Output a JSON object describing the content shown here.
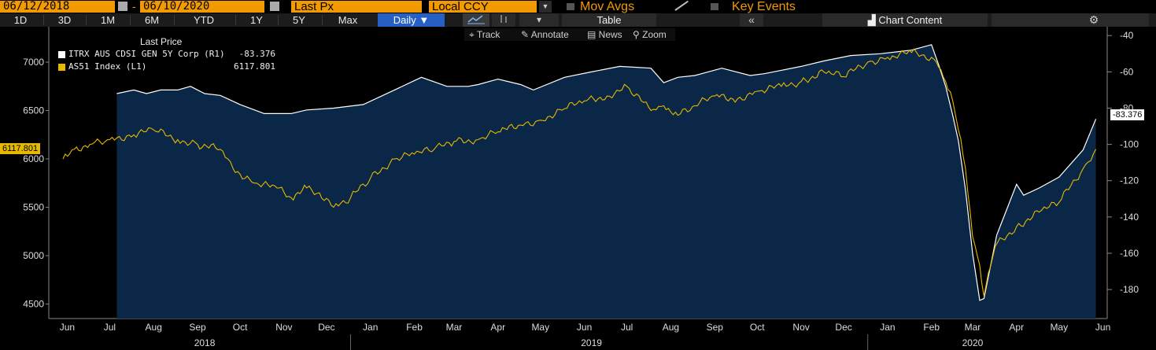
{
  "toolbar": {
    "start_date": "06/12/2018",
    "date_sep": "-",
    "end_date": "06/10/2020",
    "price_field": "Last Px",
    "currency": "Local CCY",
    "mov_avgs": "Mov Avgs",
    "key_events": "Key Events"
  },
  "periods": [
    "1D",
    "3D",
    "1M",
    "6M",
    "YTD",
    "1Y",
    "5Y",
    "Max"
  ],
  "frequency": "Daily",
  "table_label": "Table",
  "chart_content_label": "Chart Content",
  "collapse_label": "«",
  "tools": {
    "track": "Track",
    "annotate": "Annotate",
    "news": "News",
    "zoom": "Zoom"
  },
  "colors": {
    "orange": "#f29a00",
    "active_blue": "#2660c4",
    "plot_fill": "#0b2747",
    "yellow": "#e6b800",
    "white": "#ffffff"
  },
  "chart_data": {
    "type": "line",
    "legend": {
      "title": "Last Price",
      "entries": [
        {
          "name": "ITRX AUS CDSI GEN 5Y Corp  (R1)",
          "value": "-83.376",
          "color": "#ffffff"
        },
        {
          "name": "AS51 Index  (L1)",
          "value": "6117.801",
          "color": "#e6b800"
        }
      ]
    },
    "left_axis": {
      "ticks": [
        "7000",
        "6500",
        "6000",
        "5500",
        "5000",
        "4500"
      ],
      "ylim": [
        4350,
        7350
      ],
      "current_label": "6117.801"
    },
    "right_axis": {
      "ticks": [
        "-40",
        "-60",
        "-80",
        "-100",
        "-120",
        "-140",
        "-160",
        "-180"
      ],
      "ylim": [
        -196,
        -36
      ],
      "current_label": "-83.376"
    },
    "x_months": [
      "Jun",
      "Jul",
      "Aug",
      "Sep",
      "Oct",
      "Nov",
      "Dec",
      "Jan",
      "Feb",
      "Mar",
      "Apr",
      "May",
      "Jun",
      "Jul",
      "Aug",
      "Sep",
      "Oct",
      "Nov",
      "Dec",
      "Jan",
      "Feb",
      "Mar",
      "Apr",
      "May",
      "Jun"
    ],
    "x_years": [
      "2018",
      "2019",
      "2020"
    ],
    "series": [
      {
        "name": "ITRX AUS CDSI GEN 5Y Corp",
        "axis": "right",
        "x": [
          "2018-07-20",
          "2018-08-01",
          "2018-08-10",
          "2018-08-20",
          "2018-09-01",
          "2018-09-10",
          "2018-09-20",
          "2018-10-01",
          "2018-10-15",
          "2018-11-01",
          "2018-11-20",
          "2018-12-01",
          "2018-12-20",
          "2019-01-10",
          "2019-02-01",
          "2019-02-20",
          "2019-03-10",
          "2019-03-25",
          "2019-04-01",
          "2019-04-15",
          "2019-05-01",
          "2019-05-10",
          "2019-06-01",
          "2019-06-20",
          "2019-07-10",
          "2019-08-01",
          "2019-08-10",
          "2019-08-20",
          "2019-09-01",
          "2019-09-20",
          "2019-10-10",
          "2019-10-20",
          "2019-11-15",
          "2019-12-01",
          "2019-12-20",
          "2020-01-10",
          "2020-02-01",
          "2020-02-15",
          "2020-02-20",
          "2020-02-25",
          "2020-03-01",
          "2020-03-05",
          "2020-03-10",
          "2020-03-15",
          "2020-03-20",
          "2020-03-23",
          "2020-04-01",
          "2020-04-15",
          "2020-04-20",
          "2020-05-01",
          "2020-05-15",
          "2020-06-01",
          "2020-06-10"
        ],
        "y": [
          -72,
          -70,
          -72,
          -70,
          -70,
          -68,
          -72,
          -73,
          -78,
          -83,
          -83,
          -81,
          -80,
          -78,
          -70,
          -63,
          -68,
          -68,
          -67,
          -64,
          -67,
          -70,
          -63,
          -60,
          -57,
          -58,
          -66,
          -63,
          -62,
          -58,
          -62,
          -61,
          -57,
          -54,
          -51,
          -50,
          -48,
          -45,
          -56,
          -68,
          -84,
          -98,
          -125,
          -160,
          -186,
          -185,
          -150,
          -122,
          -128,
          -124,
          -118,
          -103,
          -86
        ],
        "color": "#ffffff"
      },
      {
        "name": "AS51 Index",
        "axis": "left",
        "x": [
          "2018-06-12",
          "2018-06-20",
          "2018-07-01",
          "2018-07-15",
          "2018-08-01",
          "2018-08-15",
          "2018-09-01",
          "2018-09-15",
          "2018-10-01",
          "2018-10-10",
          "2018-10-25",
          "2018-11-10",
          "2018-11-20",
          "2018-12-01",
          "2018-12-10",
          "2018-12-20",
          "2019-01-01",
          "2019-01-15",
          "2019-02-01",
          "2019-02-15",
          "2019-03-01",
          "2019-03-15",
          "2019-04-01",
          "2019-04-15",
          "2019-05-01",
          "2019-05-15",
          "2019-06-01",
          "2019-06-15",
          "2019-07-01",
          "2019-07-15",
          "2019-08-01",
          "2019-08-10",
          "2019-08-20",
          "2019-09-01",
          "2019-09-15",
          "2019-10-01",
          "2019-10-15",
          "2019-11-01",
          "2019-11-15",
          "2019-12-01",
          "2019-12-15",
          "2020-01-01",
          "2020-01-15",
          "2020-02-01",
          "2020-02-15",
          "2020-02-20",
          "2020-02-25",
          "2020-03-01",
          "2020-03-05",
          "2020-03-10",
          "2020-03-15",
          "2020-03-20",
          "2020-03-23",
          "2020-03-31",
          "2020-04-15",
          "2020-05-01",
          "2020-05-15",
          "2020-06-01",
          "2020-06-10"
        ],
        "y": [
          6000,
          6100,
          6150,
          6200,
          6250,
          6300,
          6200,
          6150,
          6100,
          5900,
          5750,
          5700,
          5600,
          5700,
          5650,
          5500,
          5600,
          5800,
          6000,
          6050,
          6100,
          6180,
          6200,
          6280,
          6350,
          6400,
          6520,
          6600,
          6650,
          6750,
          6500,
          6550,
          6450,
          6550,
          6650,
          6620,
          6700,
          6750,
          6800,
          6900,
          6850,
          7000,
          7050,
          7100,
          7050,
          6950,
          6800,
          6600,
          6300,
          5900,
          5200,
          4900,
          4580,
          5100,
          5300,
          5450,
          5550,
          5900,
          6100
        ],
        "color": "#e6b800"
      }
    ]
  }
}
